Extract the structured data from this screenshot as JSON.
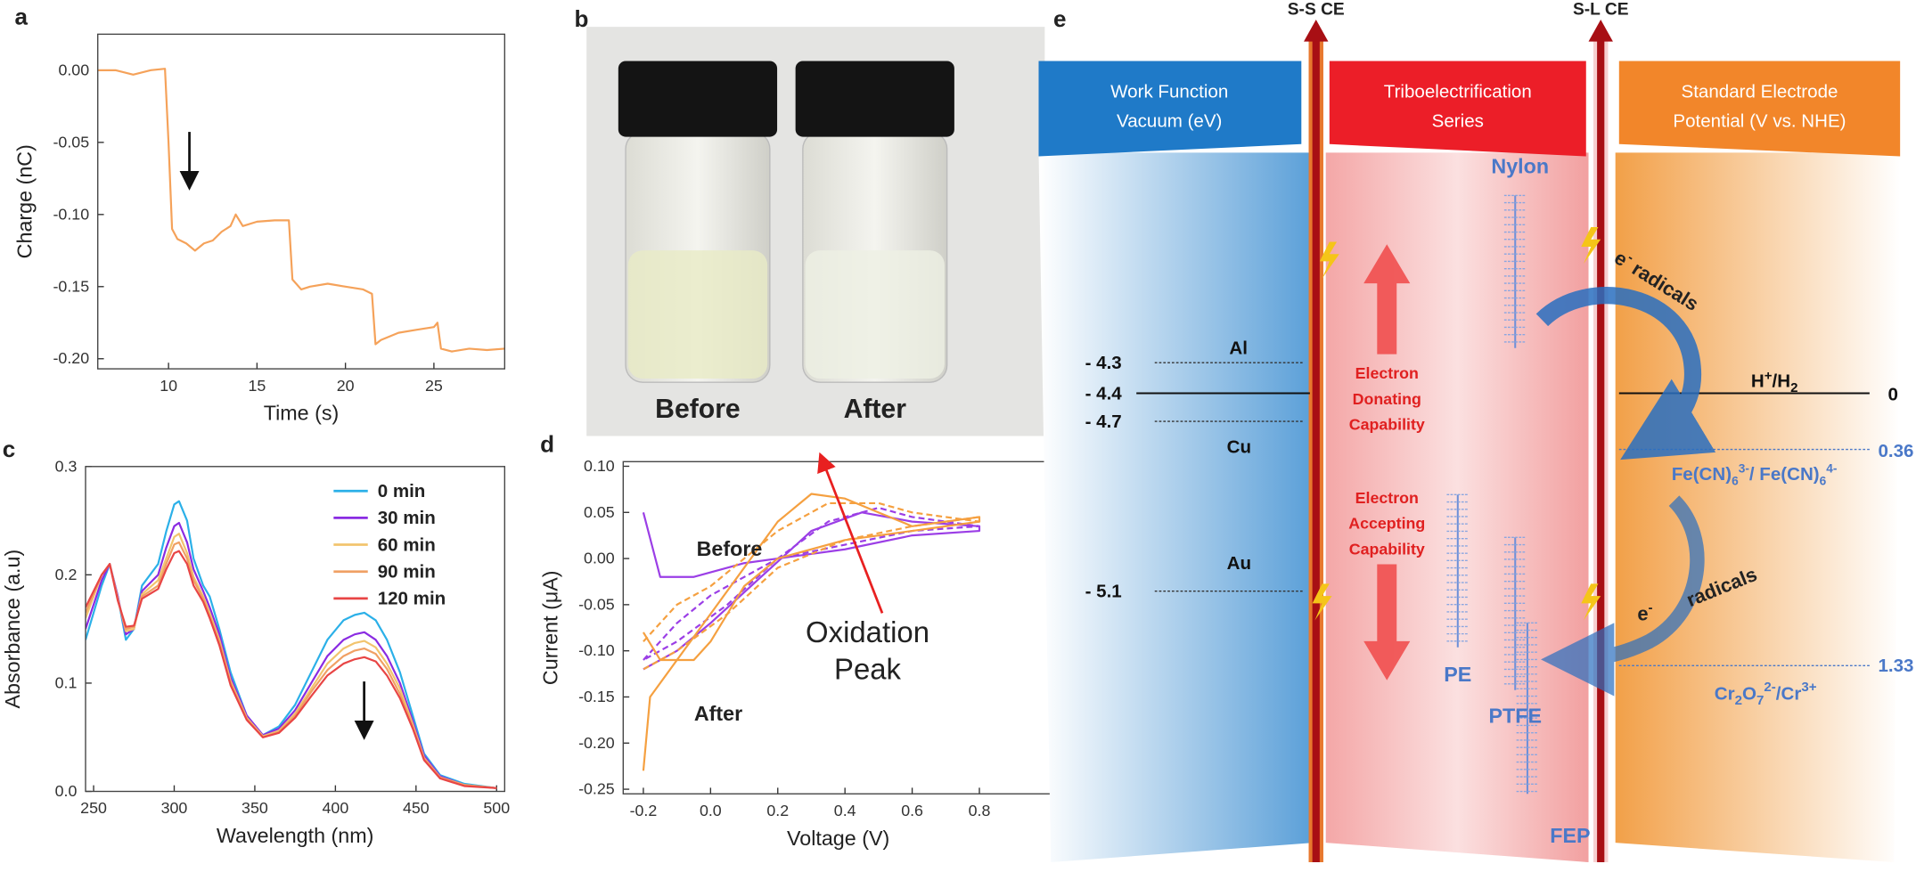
{
  "chart_data": [
    {
      "type": "line",
      "label": "a",
      "xlabel": "Time (s)",
      "ylabel": "Charge (nC)",
      "xlim": [
        6,
        29
      ],
      "ylim": [
        -0.207,
        0.025
      ],
      "xticks": [
        10,
        15,
        20,
        25
      ],
      "yticks": [
        {
          "value": 0,
          "label": "0.00"
        },
        {
          "value": -0.05,
          "label": "-0.05"
        },
        {
          "value": -0.1,
          "label": "-0.10"
        },
        {
          "value": -0.15,
          "label": "-0.15"
        },
        {
          "value": -0.2,
          "label": "-0.20"
        }
      ],
      "series": [
        {
          "color": "#f5a25a",
          "x": [
            6,
            7,
            8,
            9,
            9.8,
            10,
            10.2,
            10.5,
            11,
            11.5,
            12,
            12.5,
            13,
            13.5,
            13.8,
            14.2,
            15,
            16,
            16.8,
            17,
            17.5,
            18,
            19,
            20,
            21,
            21.5,
            21.7,
            22,
            23,
            24,
            25,
            25.2,
            25.4,
            26,
            27,
            28,
            29
          ],
          "values": [
            0,
            0,
            -0.003,
            0,
            0.001,
            -0.05,
            -0.11,
            -0.117,
            -0.12,
            -0.125,
            -0.12,
            -0.118,
            -0.112,
            -0.108,
            -0.1,
            -0.108,
            -0.105,
            -0.104,
            -0.104,
            -0.145,
            -0.152,
            -0.15,
            -0.148,
            -0.15,
            -0.152,
            -0.155,
            -0.19,
            -0.187,
            -0.182,
            -0.18,
            -0.178,
            -0.175,
            -0.193,
            -0.195,
            -0.193,
            -0.194,
            -0.193
          ]
        }
      ]
    },
    {
      "type": "line",
      "label": "c",
      "xlabel": "Wavelength (nm)",
      "ylabel": "Absorbance (a.u)",
      "xlim": [
        245,
        505
      ],
      "ylim": [
        0,
        0.3
      ],
      "legend": "upper right",
      "xticks": [
        250,
        300,
        350,
        400,
        450,
        500
      ],
      "yticks": [
        {
          "value": 0,
          "label": "0.0"
        },
        0.1,
        0.2,
        0.3
      ],
      "series": [
        {
          "name": "0 min",
          "color": "#2bb0e8",
          "x": [
            245,
            255,
            260,
            265,
            270,
            275,
            280,
            290,
            295,
            300,
            303,
            308,
            312,
            318,
            322,
            328,
            335,
            345,
            355,
            365,
            375,
            385,
            395,
            405,
            412,
            418,
            425,
            432,
            440,
            448,
            455,
            465,
            480,
            500
          ],
          "values": [
            0.14,
            0.19,
            0.21,
            0.18,
            0.14,
            0.15,
            0.19,
            0.21,
            0.24,
            0.265,
            0.268,
            0.25,
            0.215,
            0.19,
            0.18,
            0.15,
            0.11,
            0.07,
            0.052,
            0.06,
            0.08,
            0.11,
            0.14,
            0.158,
            0.163,
            0.165,
            0.158,
            0.14,
            0.11,
            0.07,
            0.035,
            0.015,
            0.007,
            0.003
          ]
        },
        {
          "name": "30 min",
          "color": "#8a2be2",
          "x": [
            245,
            255,
            260,
            265,
            270,
            275,
            280,
            290,
            295,
            300,
            303,
            308,
            312,
            318,
            322,
            328,
            335,
            345,
            355,
            365,
            375,
            385,
            395,
            405,
            412,
            418,
            425,
            432,
            440,
            448,
            455,
            465,
            480,
            500
          ],
          "values": [
            0.15,
            0.195,
            0.21,
            0.18,
            0.145,
            0.15,
            0.185,
            0.2,
            0.225,
            0.245,
            0.248,
            0.23,
            0.205,
            0.185,
            0.17,
            0.145,
            0.105,
            0.07,
            0.052,
            0.058,
            0.075,
            0.1,
            0.125,
            0.14,
            0.145,
            0.147,
            0.14,
            0.125,
            0.1,
            0.065,
            0.033,
            0.014,
            0.006,
            0.003
          ]
        },
        {
          "name": "60 min",
          "color": "#f2c46e",
          "x": [
            245,
            255,
            260,
            265,
            270,
            275,
            280,
            290,
            295,
            300,
            303,
            308,
            312,
            318,
            322,
            328,
            335,
            345,
            355,
            365,
            375,
            385,
            395,
            405,
            412,
            418,
            425,
            432,
            440,
            448,
            455,
            465,
            480,
            500
          ],
          "values": [
            0.16,
            0.2,
            0.21,
            0.178,
            0.148,
            0.15,
            0.182,
            0.195,
            0.215,
            0.235,
            0.238,
            0.22,
            0.198,
            0.18,
            0.165,
            0.14,
            0.102,
            0.068,
            0.051,
            0.056,
            0.072,
            0.095,
            0.118,
            0.132,
            0.137,
            0.139,
            0.133,
            0.118,
            0.095,
            0.062,
            0.031,
            0.013,
            0.006,
            0.003
          ]
        },
        {
          "name": "90 min",
          "color": "#f0a064",
          "x": [
            245,
            255,
            260,
            265,
            270,
            275,
            280,
            290,
            295,
            300,
            303,
            308,
            312,
            318,
            322,
            328,
            335,
            345,
            355,
            365,
            375,
            385,
            395,
            405,
            412,
            418,
            425,
            432,
            440,
            448,
            455,
            465,
            480,
            500
          ],
          "values": [
            0.165,
            0.2,
            0.21,
            0.177,
            0.15,
            0.152,
            0.18,
            0.19,
            0.21,
            0.228,
            0.23,
            0.215,
            0.195,
            0.178,
            0.162,
            0.138,
            0.1,
            0.067,
            0.05,
            0.055,
            0.07,
            0.092,
            0.112,
            0.125,
            0.13,
            0.132,
            0.127,
            0.113,
            0.09,
            0.06,
            0.03,
            0.013,
            0.006,
            0.003
          ]
        },
        {
          "name": "120 min",
          "color": "#e84545",
          "x": [
            245,
            255,
            260,
            265,
            270,
            275,
            280,
            290,
            295,
            300,
            303,
            308,
            312,
            318,
            322,
            328,
            335,
            345,
            355,
            365,
            375,
            385,
            395,
            405,
            412,
            418,
            425,
            432,
            440,
            448,
            455,
            465,
            480,
            500
          ],
          "values": [
            0.17,
            0.2,
            0.21,
            0.176,
            0.152,
            0.153,
            0.178,
            0.187,
            0.205,
            0.22,
            0.222,
            0.21,
            0.19,
            0.175,
            0.16,
            0.135,
            0.098,
            0.066,
            0.05,
            0.054,
            0.068,
            0.088,
            0.107,
            0.118,
            0.122,
            0.124,
            0.12,
            0.107,
            0.086,
            0.058,
            0.029,
            0.012,
            0.005,
            0.003
          ]
        }
      ]
    },
    {
      "type": "line",
      "label": "d",
      "xlabel": "Voltage (V)",
      "ylabel": "Current (μA)",
      "xlim": [
        -0.26,
        1.02
      ],
      "ylim": [
        -0.255,
        0.105
      ],
      "xticks": [
        -0.2,
        {
          "value": 0,
          "label": "0.0"
        },
        0.2,
        0.4,
        0.6,
        0.8
      ],
      "yticks": [
        {
          "value": 0.1,
          "label": "0.10"
        },
        0.05,
        {
          "value": 0,
          "label": "0.00"
        },
        -0.05,
        {
          "value": -0.1,
          "label": "-0.10"
        },
        -0.15,
        {
          "value": -0.2,
          "label": "-0.20"
        },
        -0.25
      ],
      "series": [
        {
          "color": "#9b3ee6",
          "x": [
            -0.2,
            -0.15,
            -0.05,
            0.1,
            0.2,
            0.4,
            0.6,
            0.8,
            0.8,
            0.6,
            0.45,
            0.3,
            0.15,
            0,
            -0.1,
            -0.2
          ],
          "values": [
            0.05,
            -0.02,
            -0.02,
            -0.005,
            0,
            0.01,
            0.025,
            0.03,
            0.035,
            0.04,
            0.05,
            0.03,
            -0.02,
            -0.07,
            -0.1,
            -0.12
          ]
        },
        {
          "color": "#9b3ee6",
          "dashed": true,
          "x": [
            -0.2,
            -0.1,
            0,
            0.2,
            0.4,
            0.6,
            0.8,
            0.8,
            0.6,
            0.5,
            0.35,
            0.2,
            0.05,
            -0.1,
            -0.2
          ],
          "values": [
            -0.11,
            -0.07,
            -0.04,
            0,
            0.015,
            0.03,
            0.035,
            0.035,
            0.045,
            0.055,
            0.04,
            0,
            -0.05,
            -0.09,
            -0.11
          ]
        },
        {
          "color": "#f5a040",
          "x": [
            -0.2,
            -0.18,
            -0.1,
            0,
            0.1,
            0.2,
            0.3,
            0.4,
            0.5,
            0.6,
            0.8,
            0.8,
            0.6,
            0.4,
            0.2,
            0.1,
            0,
            -0.05,
            -0.15,
            -0.2
          ],
          "values": [
            -0.23,
            -0.15,
            -0.11,
            -0.06,
            -0.01,
            0.04,
            0.07,
            0.065,
            0.05,
            0.035,
            0.045,
            0.04,
            0.03,
            0.02,
            0,
            -0.03,
            -0.09,
            -0.11,
            -0.11,
            -0.08
          ]
        },
        {
          "color": "#f5a040",
          "dashed": true,
          "x": [
            -0.2,
            -0.1,
            0,
            0.2,
            0.35,
            0.5,
            0.6,
            0.8,
            0.8,
            0.6,
            0.4,
            0.2,
            0.05,
            -0.1,
            -0.2
          ],
          "values": [
            -0.09,
            -0.05,
            -0.03,
            0.03,
            0.06,
            0.06,
            0.05,
            0.04,
            0.045,
            0.035,
            0.02,
            -0.01,
            -0.06,
            -0.1,
            -0.12
          ]
        }
      ],
      "annotations": [
        {
          "text": [
            "Before"
          ],
          "color": "#9b3ee6"
        },
        {
          "text": [
            "After"
          ],
          "color": "#f5a040"
        },
        {
          "text": [
            "Oxidation",
            "Peak"
          ],
          "color": "#e82020"
        }
      ]
    }
  ],
  "photo": {
    "label": "b",
    "captions": [
      "Before",
      "After"
    ]
  },
  "diagram": {
    "label": "e",
    "arrows": [
      "S-S CE",
      "S-L CE"
    ],
    "columns": [
      [
        "Work Function",
        "Vacuum (eV)"
      ],
      [
        "Triboelectrification",
        "Series"
      ],
      [
        "Standard Electrode",
        "Potential (V vs. NHE)"
      ]
    ],
    "levels": [
      "- 4.3",
      "- 4.4",
      "- 4.7",
      "- 5.1"
    ],
    "metals": [
      "Al",
      "Cu",
      "Au"
    ],
    "materials": [
      "Nylon",
      "PE",
      "PTFE",
      "FEP"
    ],
    "capabilities": [
      [
        "Electron",
        "Donating",
        "Capability"
      ],
      [
        "Electron",
        "Accepting",
        "Capability"
      ]
    ],
    "potentials": [
      {
        "value": "0",
        "couple": [
          "H",
          "+",
          "/H",
          "2"
        ]
      },
      {
        "value": "0.36",
        "couple": [
          "Fe(CN)",
          "6",
          "3-",
          "/ Fe(CN)",
          "6",
          "4-"
        ]
      },
      {
        "value": "1.33",
        "couple": [
          "Cr",
          "2",
          "O",
          "7",
          "2-",
          "/Cr",
          "3+"
        ]
      }
    ],
    "transfers": [
      [
        "e",
        "-",
        " radicals"
      ],
      [
        "radicals"
      ],
      [
        "e",
        "-"
      ]
    ]
  }
}
